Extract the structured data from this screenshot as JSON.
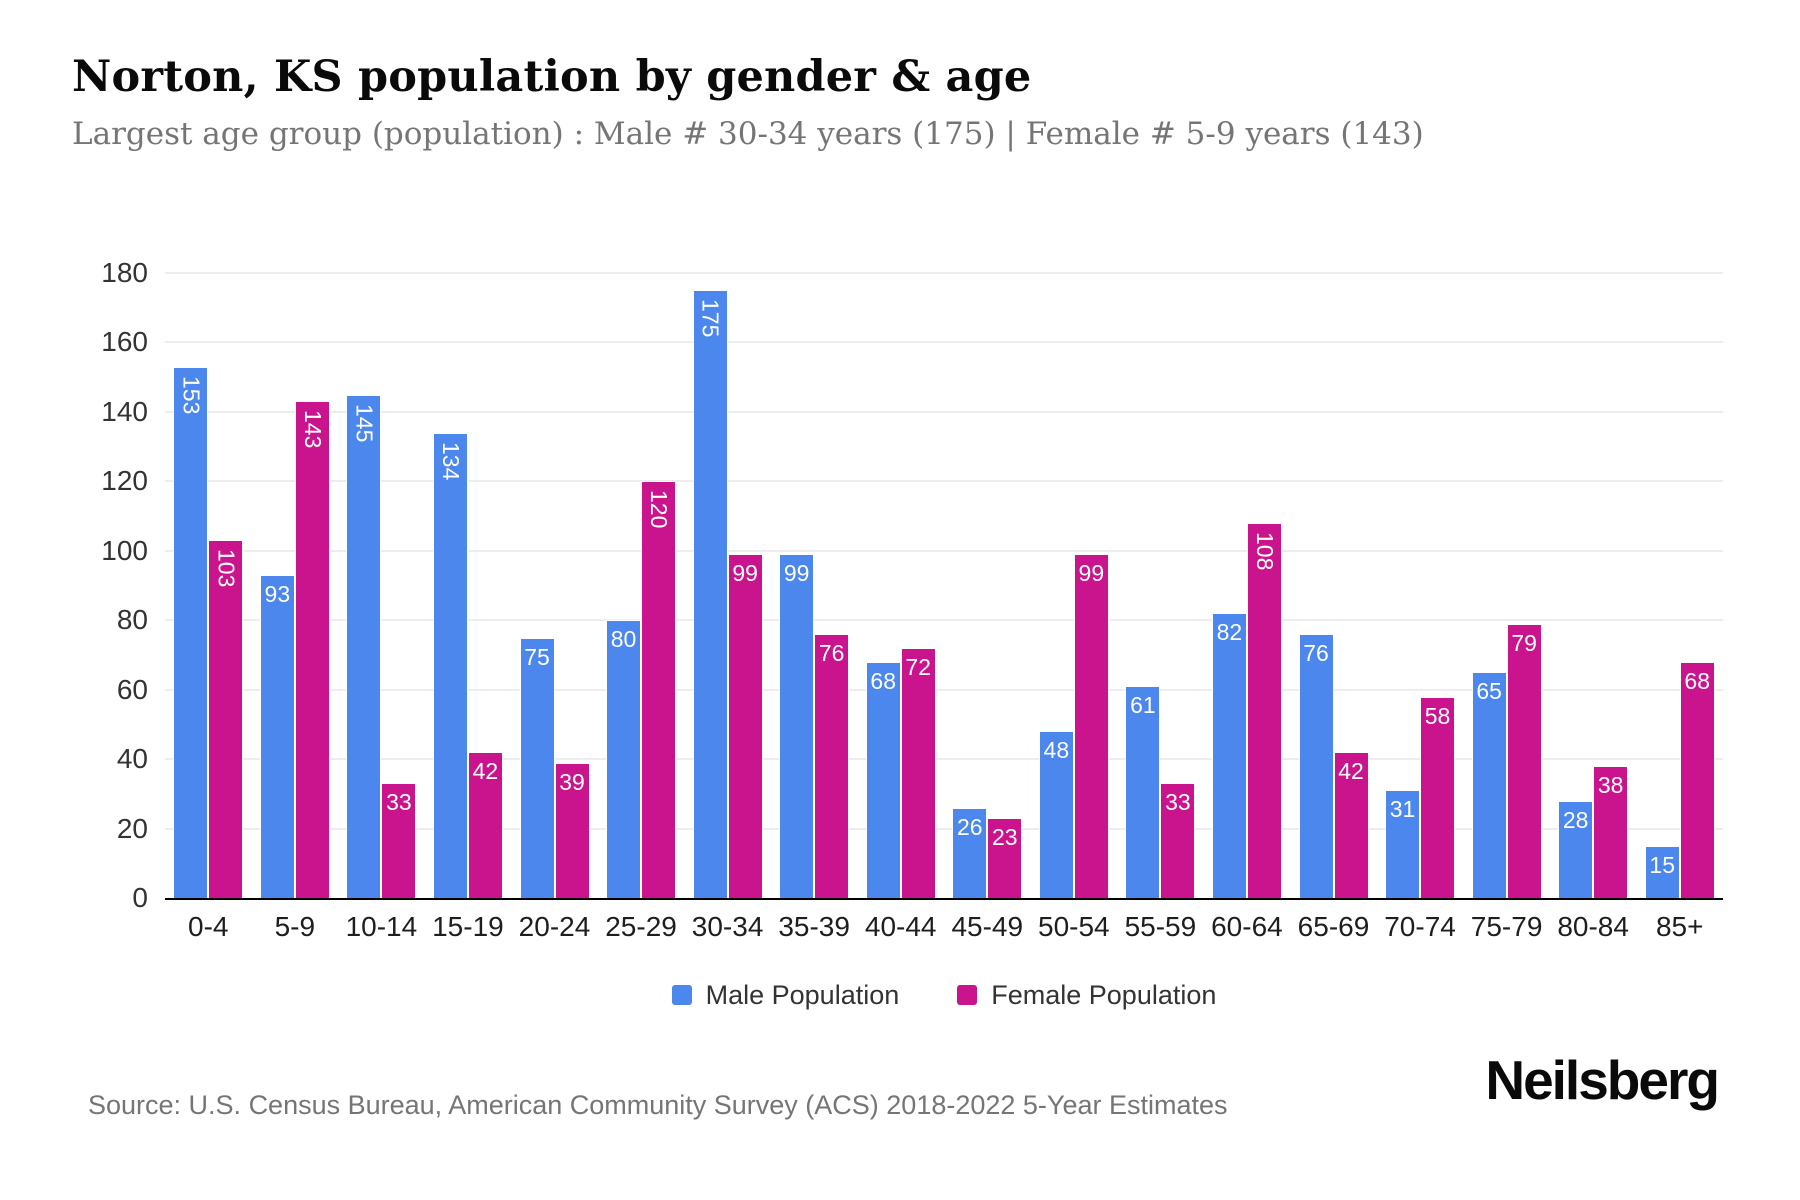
{
  "header": {
    "title": "Norton, KS population by gender & age",
    "subtitle": "Largest age group (population) : Male # 30-34 years (175) | Female # 5-9 years (143)"
  },
  "chart_data": {
    "type": "bar",
    "title": "Norton, KS population by gender & age",
    "categories": [
      "0-4",
      "5-9",
      "10-14",
      "15-19",
      "20-24",
      "25-29",
      "30-34",
      "35-39",
      "40-44",
      "45-49",
      "50-54",
      "55-59",
      "60-64",
      "65-69",
      "70-74",
      "75-79",
      "80-84",
      "85+"
    ],
    "series": [
      {
        "name": "Male Population",
        "color": "#4b87ec",
        "values": [
          153,
          93,
          145,
          134,
          75,
          80,
          175,
          99,
          68,
          26,
          48,
          61,
          82,
          76,
          31,
          65,
          28,
          15
        ]
      },
      {
        "name": "Female Population",
        "color": "#c9148e",
        "values": [
          103,
          143,
          33,
          42,
          39,
          120,
          99,
          76,
          72,
          23,
          99,
          33,
          108,
          42,
          58,
          79,
          38,
          68
        ]
      }
    ],
    "xlabel": "",
    "ylabel": "",
    "ylim": [
      0,
      180
    ],
    "ytick_step": 20,
    "grid": "horizontal",
    "legend_position": "bottom",
    "value_labels": "inside-top, white, rotated 90deg when >= 100"
  },
  "footer": {
    "source": "Source: U.S. Census Bureau, American Community Survey (ACS) 2018-2022 5-Year Estimates",
    "brand": "Neilsberg"
  }
}
